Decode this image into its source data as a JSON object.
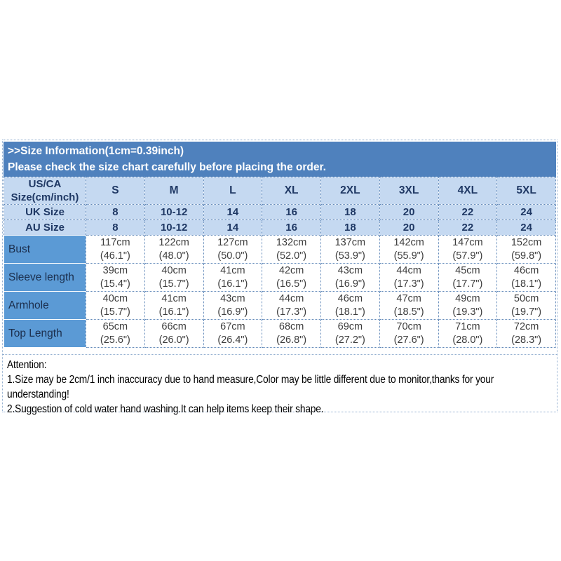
{
  "header": {
    "line1": ">>Size Information(1cm=0.39inch)",
    "line2": "Please check the size chart carefully before placing the order."
  },
  "table": {
    "corner": {
      "line1": "US/CA",
      "line2": "Size(cm/inch)"
    },
    "sizes": [
      "S",
      "M",
      "L",
      "XL",
      "2XL",
      "3XL",
      "4XL",
      "5XL"
    ],
    "uk": {
      "label": "UK Size",
      "values": [
        "8",
        "10-12",
        "14",
        "16",
        "18",
        "20",
        "22",
        "24"
      ]
    },
    "au": {
      "label": "AU Size",
      "values": [
        "8",
        "10-12",
        "14",
        "16",
        "18",
        "20",
        "22",
        "24"
      ]
    },
    "rows": [
      {
        "label": "Bust",
        "cm": [
          "117cm",
          "122cm",
          "127cm",
          "132cm",
          "137cm",
          "142cm",
          "147cm",
          "152cm"
        ],
        "inch": [
          "(46.1\")",
          "(48.0\")",
          "(50.0\")",
          "(52.0\")",
          "(53.9\")",
          "(55.9\")",
          "(57.9\")",
          "(59.8\")"
        ]
      },
      {
        "label": "Sleeve length",
        "cm": [
          "39cm",
          "40cm",
          "41cm",
          "42cm",
          "43cm",
          "44cm",
          "45cm",
          "46cm"
        ],
        "inch": [
          "(15.4\")",
          "(15.7\")",
          "(16.1\")",
          "(16.5\")",
          "(16.9\")",
          "(17.3\")",
          "(17.7\")",
          "(18.1\")"
        ]
      },
      {
        "label": "Armhole",
        "cm": [
          "40cm",
          "41cm",
          "43cm",
          "44cm",
          "46cm",
          "47cm",
          "49cm",
          "50cm"
        ],
        "inch": [
          "(15.7\")",
          "(16.1\")",
          "(16.9\")",
          "(17.3\")",
          "(18.1\")",
          "(18.5\")",
          "(19.3\")",
          "(19.7\")"
        ]
      },
      {
        "label": "Top Length",
        "cm": [
          "65cm",
          "66cm",
          "67cm",
          "68cm",
          "69cm",
          "70cm",
          "71cm",
          "72cm"
        ],
        "inch": [
          "(25.6\")",
          "(26.0\")",
          "(26.4\")",
          "(26.8\")",
          "(27.2\")",
          "(27.6\")",
          "(28.0\")",
          "(28.3\")"
        ]
      }
    ]
  },
  "attention": {
    "lines": [
      "Attention:",
      "1.Size may be 2cm/1 inch inaccuracy due to hand measure,Color may be little different due to monitor,thanks for your",
      "understanding!",
      "2.Suggestion of cold water hand washing.It can help items keep their shape."
    ]
  },
  "colors": {
    "band_blue": "#4f81bd",
    "light_cell_blue": "#c5d9f1",
    "label_cell_blue": "#5b9ad5",
    "dark_navy_text": "#1f3864",
    "dotted_border": "#5f87b8"
  }
}
